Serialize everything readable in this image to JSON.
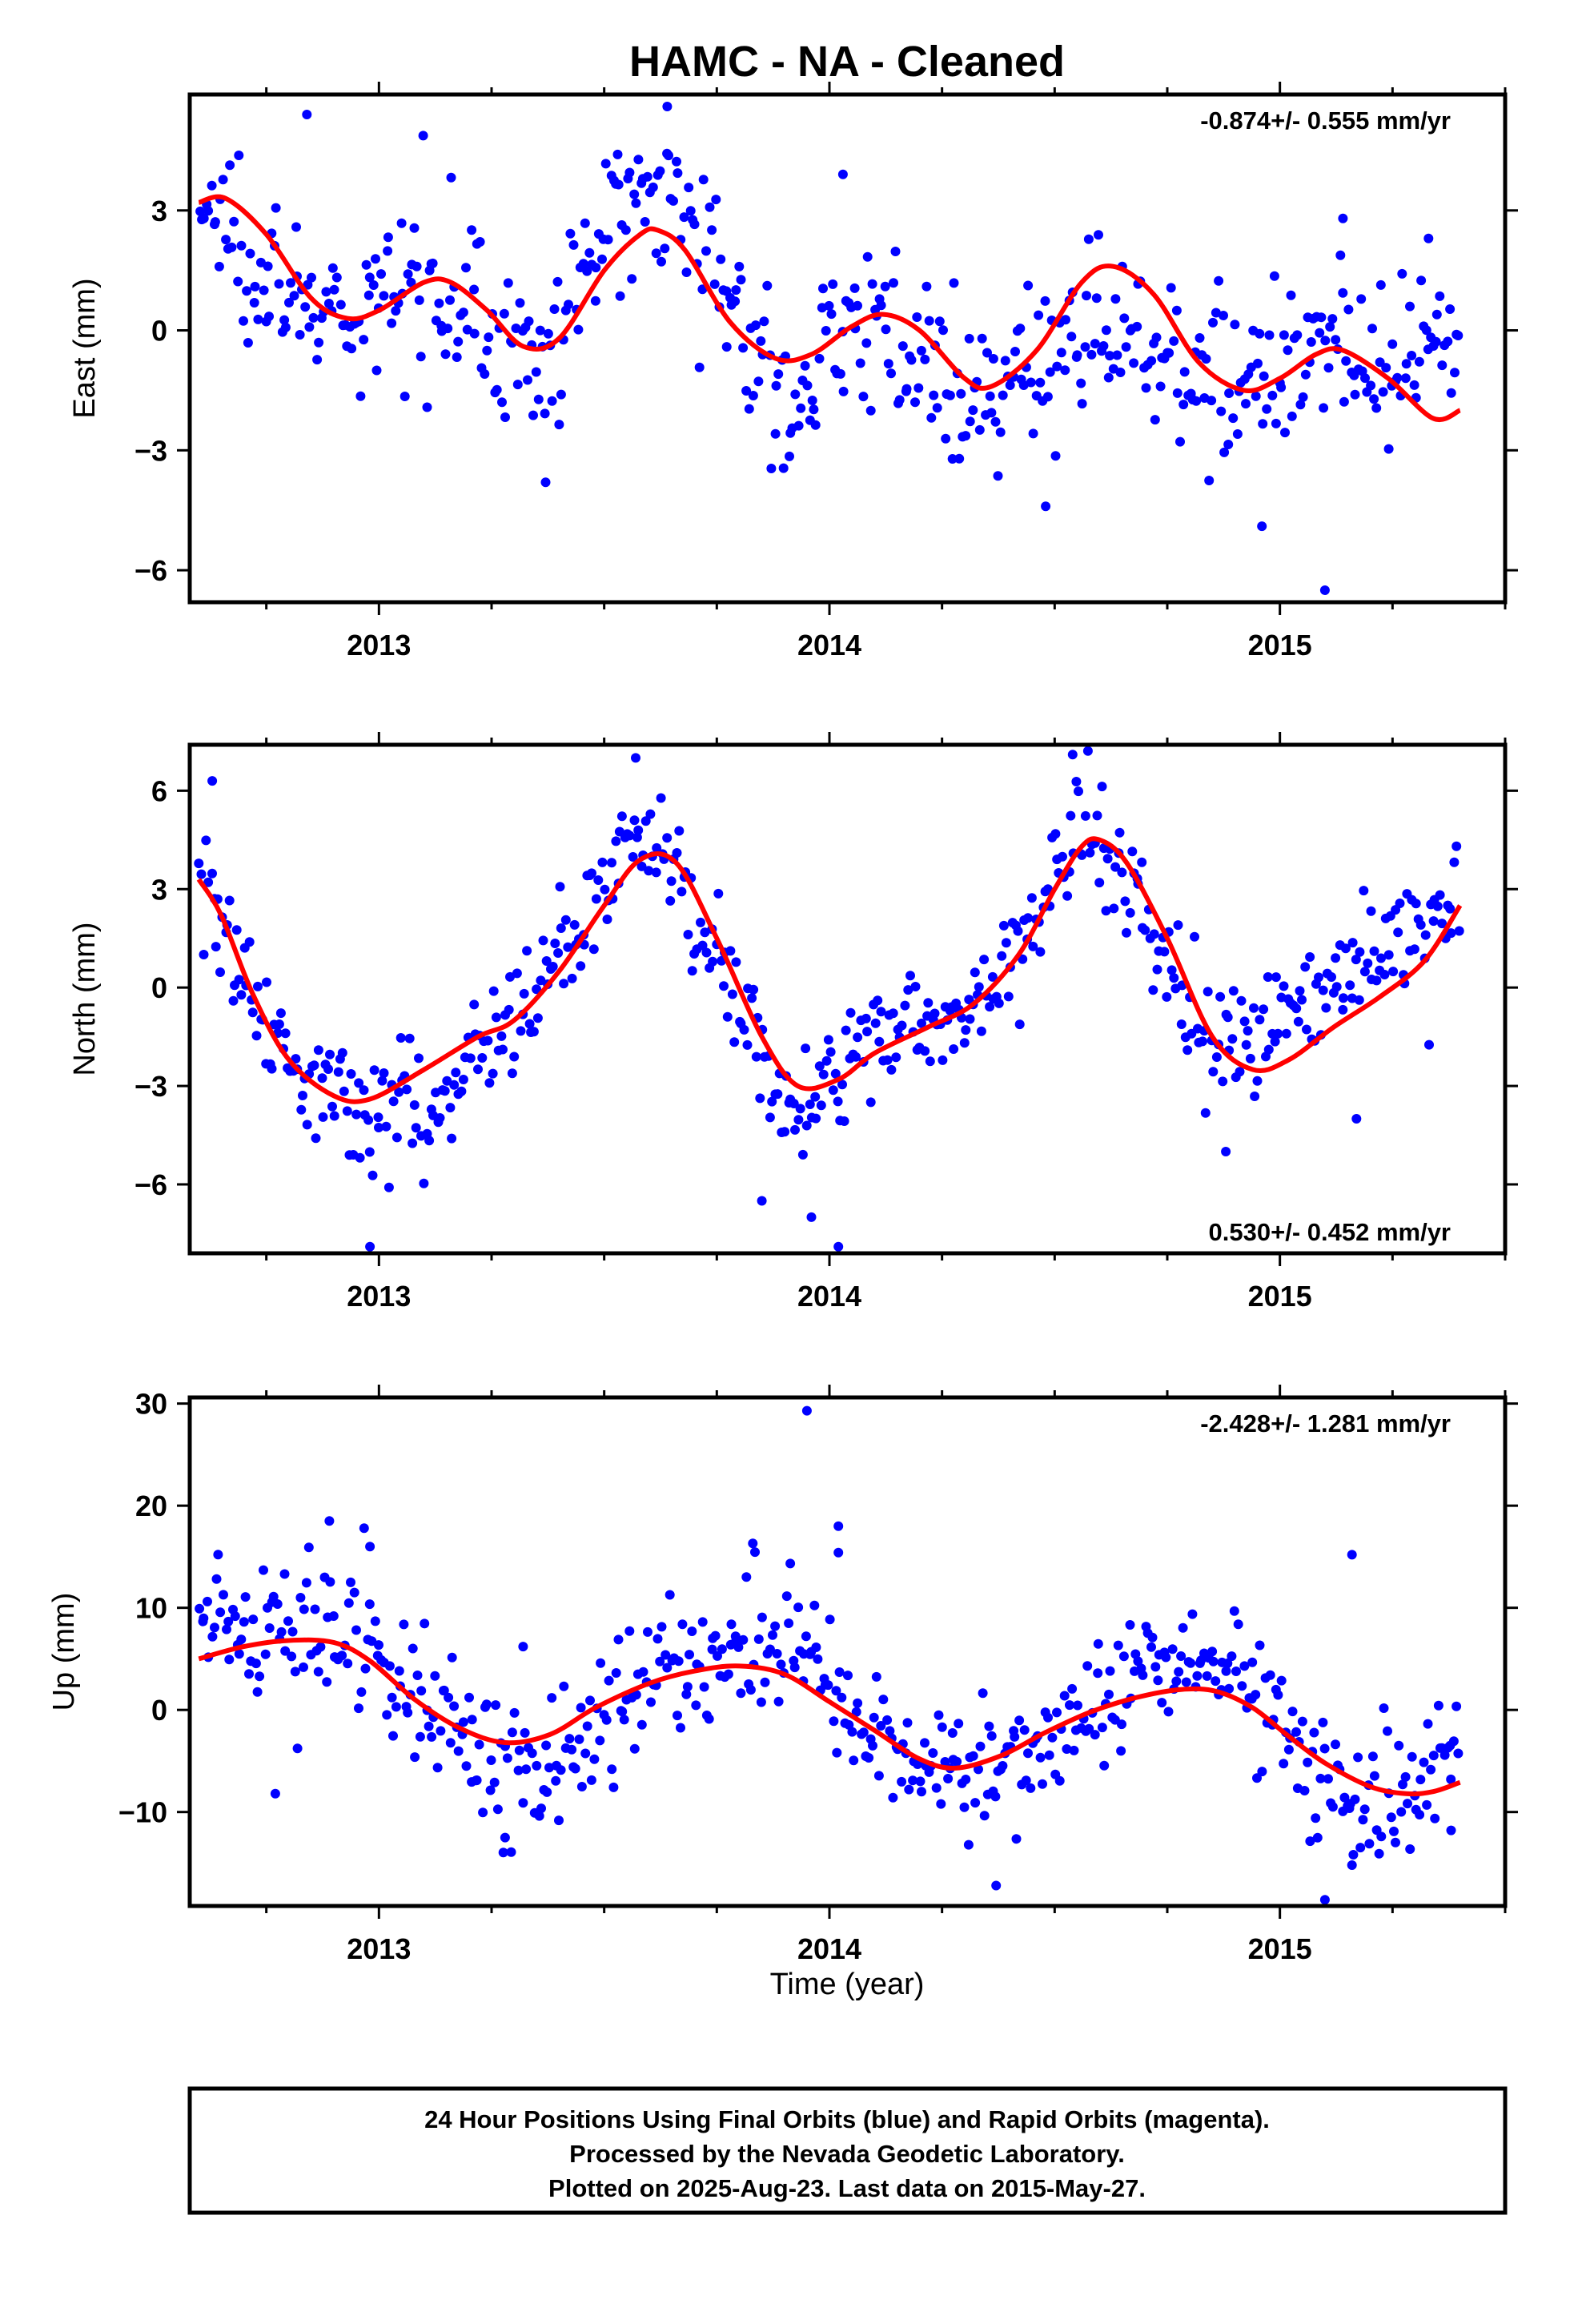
{
  "title": "HAMC  - NA - Cleaned",
  "xlabel": "Time (year)",
  "footer": {
    "lines": [
      "24 Hour Positions Using Final Orbits (blue) and Rapid Orbits (magenta).",
      "Processed by the Nevada Geodetic Laboratory.",
      "Plotted on 2025-Aug-23. Last data on 2015-May-27."
    ]
  },
  "colors": {
    "points": "#0000ff",
    "model": "#ff0000",
    "frame": "#000000"
  },
  "chart_data": [
    {
      "type": "scatter",
      "ylabel": "East (mm)",
      "rate": "-0.874+/- 0.555 mm/yr",
      "xlim": [
        2012.58,
        2015.5
      ],
      "ylim": [
        -6.8,
        5.9
      ],
      "yticks": [
        -6,
        -3,
        0,
        3
      ],
      "ytick_labels": [
        "−6",
        "−3",
        "0",
        "3"
      ],
      "xticks": [
        2013,
        2014,
        2015
      ],
      "xtick_labels": [
        "2013",
        "2014",
        "2015"
      ],
      "model": {
        "x": [
          2012.6,
          2012.66,
          2012.75,
          2012.85,
          2012.93,
          2013.0,
          2013.1,
          2013.16,
          2013.24,
          2013.32,
          2013.4,
          2013.5,
          2013.58,
          2013.62,
          2013.68,
          2013.78,
          2013.88,
          2013.96,
          2014.05,
          2014.12,
          2014.2,
          2014.3,
          2014.36,
          2014.46,
          2014.56,
          2014.63,
          2014.72,
          2014.82,
          2014.92,
          2015.0,
          2015.08,
          2015.14,
          2015.24,
          2015.34,
          2015.4
        ],
        "y": [
          3.2,
          3.3,
          2.4,
          0.8,
          0.3,
          0.5,
          1.2,
          1.2,
          0.5,
          -0.4,
          -0.2,
          1.5,
          2.4,
          2.5,
          2.0,
          0.2,
          -0.7,
          -0.6,
          0.1,
          0.4,
          0.0,
          -1.2,
          -1.4,
          -0.5,
          1.2,
          1.6,
          0.9,
          -0.8,
          -1.5,
          -1.2,
          -0.6,
          -0.5,
          -1.2,
          -2.2,
          -2.0
        ]
      },
      "points": {
        "anchors_x": [
          2012.6,
          2012.66,
          2012.75,
          2012.85,
          2012.93,
          2013.0,
          2013.1,
          2013.16,
          2013.24,
          2013.32,
          2013.4,
          2013.5,
          2013.58,
          2013.62,
          2013.68,
          2013.78,
          2013.88,
          2013.96,
          2014.05,
          2014.12,
          2014.2,
          2014.3,
          2014.36,
          2014.46,
          2014.56,
          2014.63,
          2014.72,
          2014.82,
          2014.92,
          2015.0,
          2015.08,
          2015.14,
          2015.24,
          2015.34,
          2015.4
        ],
        "anchors_y": [
          3.0,
          2.7,
          1.8,
          0.4,
          -0.1,
          0.4,
          1.6,
          1.4,
          0.2,
          -0.8,
          -0.5,
          2.5,
          3.6,
          3.9,
          3.3,
          0.6,
          -1.6,
          -1.2,
          0.4,
          0.2,
          -0.8,
          -2.1,
          -2.0,
          -0.8,
          0.2,
          0.0,
          -0.3,
          -0.8,
          -1.6,
          -0.6,
          -0.2,
          -0.6,
          -1.4,
          -0.6,
          -1.0
        ],
        "count": 540,
        "scatter_sd": 1.0,
        "outliers": [
          {
            "x": 2012.84,
            "y": 5.4
          },
          {
            "x": 2013.37,
            "y": -3.8
          },
          {
            "x": 2013.53,
            "y": 4.4
          },
          {
            "x": 2013.64,
            "y": 5.6
          },
          {
            "x": 2014.03,
            "y": 3.9
          },
          {
            "x": 2014.48,
            "y": -4.4
          },
          {
            "x": 2014.96,
            "y": -4.9
          },
          {
            "x": 2015.1,
            "y": -6.5
          },
          {
            "x": 2015.14,
            "y": 2.8
          },
          {
            "x": 2015.33,
            "y": 2.3
          }
        ]
      }
    },
    {
      "type": "scatter",
      "ylabel": "North (mm)",
      "rate": "0.530+/- 0.452 mm/yr",
      "xlim": [
        2012.58,
        2015.5
      ],
      "ylim": [
        -8.1,
        7.4
      ],
      "yticks": [
        -6,
        -3,
        0,
        3,
        6
      ],
      "ytick_labels": [
        "−6",
        "−3",
        "0",
        "3",
        "6"
      ],
      "xticks": [
        2013,
        2014,
        2015
      ],
      "xtick_labels": [
        "2013",
        "2014",
        "2015"
      ],
      "model": {
        "x": [
          2012.6,
          2012.65,
          2012.72,
          2012.8,
          2012.9,
          2012.98,
          2013.1,
          2013.22,
          2013.3,
          2013.4,
          2013.5,
          2013.58,
          2013.66,
          2013.75,
          2013.85,
          2013.93,
          2014.02,
          2014.1,
          2014.22,
          2014.32,
          2014.42,
          2014.5,
          2014.56,
          2014.6,
          2014.66,
          2014.75,
          2014.85,
          2014.94,
          2015.02,
          2015.12,
          2015.22,
          2015.32,
          2015.4
        ],
        "y": [
          3.3,
          2.2,
          -0.2,
          -2.2,
          -3.3,
          -3.4,
          -2.5,
          -1.5,
          -1.0,
          0.5,
          2.5,
          3.9,
          3.8,
          1.5,
          -1.5,
          -3.0,
          -2.8,
          -2.0,
          -1.2,
          -0.5,
          1.0,
          3.0,
          4.3,
          4.5,
          3.8,
          1.5,
          -1.5,
          -2.5,
          -2.2,
          -1.2,
          -0.3,
          0.8,
          2.5
        ]
      },
      "points": {
        "anchors_x": [
          2012.6,
          2012.65,
          2012.72,
          2012.8,
          2012.9,
          2012.98,
          2013.1,
          2013.22,
          2013.3,
          2013.4,
          2013.5,
          2013.58,
          2013.66,
          2013.75,
          2013.85,
          2013.93,
          2014.02,
          2014.1,
          2014.22,
          2014.32,
          2014.42,
          2014.5,
          2014.56,
          2014.6,
          2014.66,
          2014.75,
          2014.85,
          2014.94,
          2015.02,
          2015.12,
          2015.22,
          2015.32,
          2015.4
        ],
        "anchors_y": [
          3.7,
          2.4,
          -0.4,
          -2.4,
          -3.0,
          -3.6,
          -3.6,
          -1.6,
          -0.8,
          1.2,
          2.9,
          4.6,
          3.8,
          0.8,
          -2.0,
          -3.8,
          -3.0,
          -1.3,
          -0.8,
          -0.8,
          1.4,
          3.2,
          5.0,
          5.0,
          3.0,
          0.5,
          -1.8,
          -1.8,
          0.0,
          0.2,
          1.0,
          1.8,
          2.0
        ],
        "count": 540,
        "scatter_sd": 0.9,
        "outliers": [
          {
            "x": 2012.63,
            "y": 6.3
          },
          {
            "x": 2012.98,
            "y": -7.9
          },
          {
            "x": 2013.57,
            "y": 7.0
          },
          {
            "x": 2013.85,
            "y": -6.5
          },
          {
            "x": 2013.96,
            "y": -7.0
          },
          {
            "x": 2014.02,
            "y": -7.9
          },
          {
            "x": 2014.54,
            "y": 7.1
          },
          {
            "x": 2014.88,
            "y": -5.0
          },
          {
            "x": 2015.17,
            "y": -4.0
          }
        ]
      }
    },
    {
      "type": "scatter",
      "ylabel": "Up (mm)",
      "rate": "-2.428+/- 1.281 mm/yr",
      "xlim": [
        2012.58,
        2015.5
      ],
      "ylim": [
        -19.2,
        30.6
      ],
      "yticks": [
        -10,
        0,
        10,
        20,
        30
      ],
      "ytick_labels": [
        "−10",
        "0",
        "10",
        "20",
        "30"
      ],
      "xticks": [
        2013,
        2014,
        2015
      ],
      "xtick_labels": [
        "2013",
        "2014",
        "2015"
      ],
      "model": {
        "x": [
          2012.6,
          2012.7,
          2012.8,
          2012.9,
          2012.98,
          2013.08,
          2013.18,
          2013.28,
          2013.38,
          2013.48,
          2013.6,
          2013.7,
          2013.8,
          2013.9,
          2014.0,
          2014.1,
          2014.2,
          2014.28,
          2014.38,
          2014.48,
          2014.58,
          2014.68,
          2014.78,
          2014.86,
          2014.94,
          2015.02,
          2015.1,
          2015.2,
          2015.28,
          2015.34,
          2015.4
        ],
        "y": [
          5.0,
          6.2,
          6.8,
          6.6,
          4.8,
          1.0,
          -1.8,
          -3.2,
          -2.4,
          0.2,
          2.6,
          3.8,
          4.3,
          3.5,
          0.8,
          -2.0,
          -4.8,
          -5.7,
          -4.5,
          -2.2,
          -0.2,
          1.2,
          2.0,
          1.8,
          0.2,
          -2.6,
          -5.2,
          -7.5,
          -8.2,
          -8.0,
          -7.1
        ]
      },
      "points": {
        "anchors_x": [
          2012.6,
          2012.7,
          2012.8,
          2012.9,
          2012.98,
          2013.08,
          2013.18,
          2013.28,
          2013.38,
          2013.48,
          2013.6,
          2013.7,
          2013.8,
          2013.9,
          2014.0,
          2014.1,
          2014.2,
          2014.28,
          2014.38,
          2014.48,
          2014.58,
          2014.68,
          2014.78,
          2014.86,
          2014.94,
          2015.02,
          2015.1,
          2015.2,
          2015.28,
          2015.34,
          2015.4
        ],
        "anchors_y": [
          8.5,
          7.5,
          8.0,
          8.5,
          6.0,
          1.0,
          -2.0,
          -5.0,
          -5.0,
          -1.0,
          2.0,
          3.0,
          5.5,
          5.0,
          3.0,
          -3.0,
          -4.0,
          -6.5,
          -5.0,
          -3.0,
          0.0,
          3.0,
          4.0,
          3.0,
          1.0,
          -3.0,
          -6.5,
          -9.0,
          -8.0,
          -5.0,
          -4.0
        ],
        "count": 540,
        "scatter_sd": 3.3,
        "outliers": [
          {
            "x": 2012.77,
            "y": -8.2
          },
          {
            "x": 2012.89,
            "y": 18.5
          },
          {
            "x": 2012.98,
            "y": 16.0
          },
          {
            "x": 2013.28,
            "y": -12.5
          },
          {
            "x": 2013.32,
            "y": 6.2
          },
          {
            "x": 2013.83,
            "y": 16.3
          },
          {
            "x": 2013.95,
            "y": 29.3
          },
          {
            "x": 2014.02,
            "y": 18.0
          },
          {
            "x": 2014.02,
            "y": 15.4
          },
          {
            "x": 2014.37,
            "y": -17.2
          },
          {
            "x": 2015.1,
            "y": -18.6
          },
          {
            "x": 2015.16,
            "y": 15.2
          },
          {
            "x": 2015.16,
            "y": -15.2
          },
          {
            "x": 2015.38,
            "y": -11.8
          }
        ]
      }
    }
  ]
}
